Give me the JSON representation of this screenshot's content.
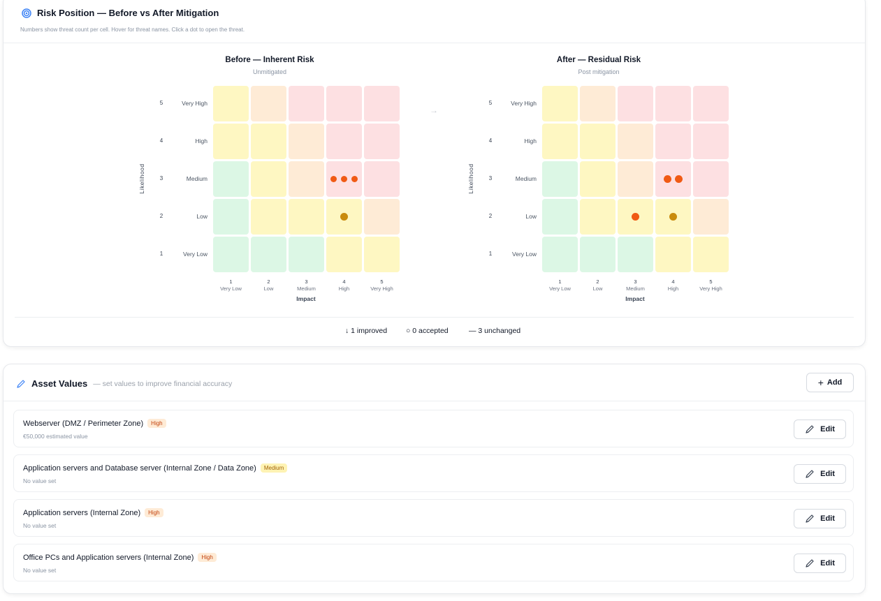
{
  "risk": {
    "title": "Risk Position — Before vs After Mitigation",
    "subtitle": "Numbers show threat count per cell. Hover for threat names. Click a dot to open the threat.",
    "before_title": "Before — Inherent Risk",
    "before_sub": "Unmitigated",
    "after_title": "After — Residual Risk",
    "after_sub": "Post mitigation",
    "arrow": "→",
    "axis_x": "Impact",
    "axis_y": "Likelihood",
    "rows": [
      {
        "num": "5",
        "label": "Very High"
      },
      {
        "num": "4",
        "label": "High"
      },
      {
        "num": "3",
        "label": "Medium"
      },
      {
        "num": "2",
        "label": "Low"
      },
      {
        "num": "1",
        "label": "Very Low"
      }
    ],
    "cols": [
      {
        "num": "1",
        "label": "Very Low"
      },
      {
        "num": "2",
        "label": "Low"
      },
      {
        "num": "3",
        "label": "Medium"
      },
      {
        "num": "4",
        "label": "High"
      },
      {
        "num": "5",
        "label": "Very High"
      }
    ],
    "before_dots": [
      {
        "likelihood": 3,
        "impact": 4,
        "count": 3,
        "color": "orange"
      },
      {
        "likelihood": 2,
        "impact": 4,
        "count": 1,
        "color": "gold"
      }
    ],
    "after_dots": [
      {
        "likelihood": 3,
        "impact": 4,
        "count": 2,
        "color": "orange"
      },
      {
        "likelihood": 2,
        "impact": 3,
        "count": 1,
        "color": "orange"
      },
      {
        "likelihood": 2,
        "impact": 4,
        "count": 1,
        "color": "gold"
      }
    ],
    "colors": {
      "orange": "#f05a14",
      "gold": "#c98b0d"
    },
    "summary": {
      "improved": "↓ 1 improved",
      "accepted": "○ 0 accepted",
      "unchanged": "— 3 unchanged"
    }
  },
  "assets": {
    "title": "Asset Values",
    "hint": "— set values to improve financial accuracy",
    "add_label": "Add",
    "edit_label": "Edit",
    "items": [
      {
        "name": "Webserver (DMZ / Perimeter Zone)",
        "level": "High",
        "value": "€50,000 estimated value"
      },
      {
        "name": "Application servers and Database server (Internal Zone / Data Zone)",
        "level": "Medium",
        "value": "No value set"
      },
      {
        "name": "Application servers (Internal Zone)",
        "level": "High",
        "value": "No value set"
      },
      {
        "name": "Office PCs and Application servers (Internal Zone)",
        "level": "High",
        "value": "No value set"
      }
    ]
  }
}
